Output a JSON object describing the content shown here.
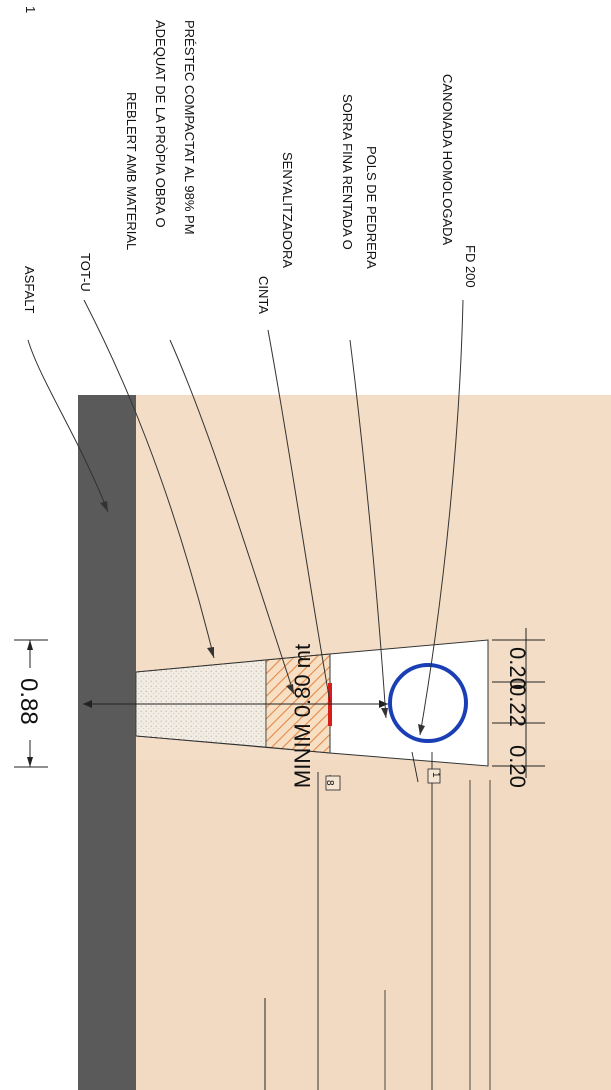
{
  "page_number": "1",
  "labels": {
    "asfalt": "ASFALT",
    "tot_u": "TOT-U",
    "reblert_1": "REBLERT AMB MATERIAL",
    "reblert_2": "ADEQUAT DE LA PRÒPIA OBRA  O",
    "reblert_3": "PRÉSTEC COMPACTAT AL 98% PM",
    "cinta_1": "CINTA",
    "cinta_2": "SENYALITZADORA",
    "sorra_1": "SORRA FINA RENTADA O",
    "sorra_2": "POLS DE PEDRERA",
    "canonada_1": "CANONADA HOMOLOGADA",
    "canonada_2": "FD 200"
  },
  "dimensions": {
    "trench_width": "0.88",
    "minimum_depth": "MINIM 0.80 mt",
    "bottom_left": "0.20",
    "bottom_center": "0.22",
    "bottom_right": "0.20",
    "slope_run": "1",
    "slope_rise": "8"
  },
  "colors": {
    "soil": "#f3ddc6",
    "asphalt": "#5a5a5a",
    "tot_u_fill": "#f2ede4",
    "backfill_hatch": "#e3894a",
    "warning_tape": "#d71c1c",
    "sand_bed": "#ffffff",
    "pipe": "#1a3fb5",
    "lines": "#222222"
  }
}
